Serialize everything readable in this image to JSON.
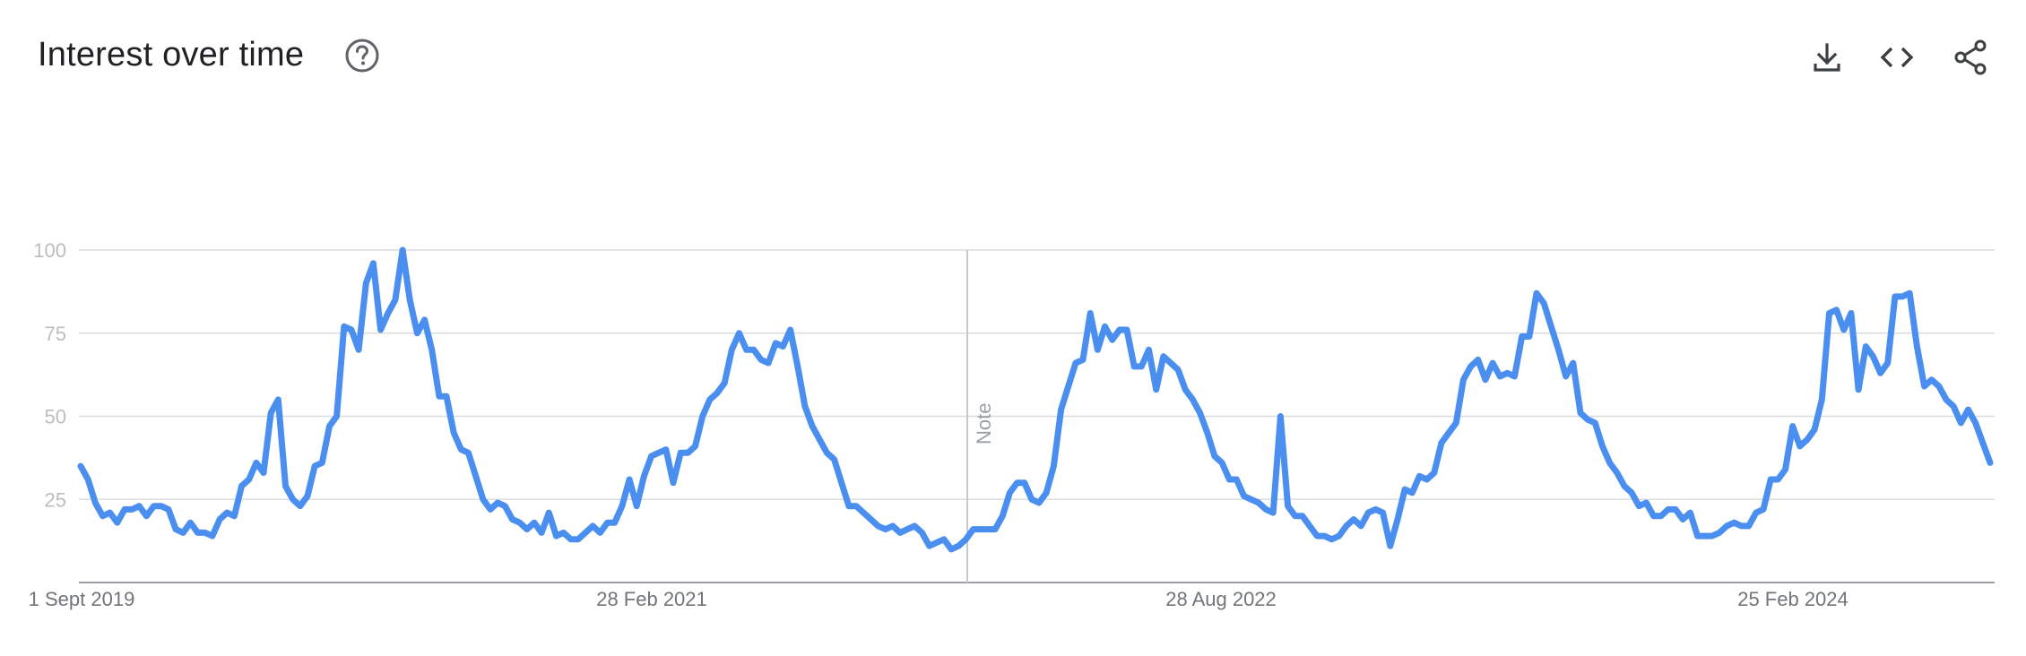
{
  "header": {
    "title": "Interest over time",
    "help_icon": "help-circle-icon",
    "actions": [
      {
        "name": "download-icon"
      },
      {
        "name": "embed-code-icon"
      },
      {
        "name": "share-icon"
      }
    ]
  },
  "colors": {
    "line": "#4a8ff0",
    "grid": "#dadce0",
    "axis": "#9aa0a6",
    "title": "#202124",
    "icon": "#3c4043"
  },
  "chart_data": {
    "type": "line",
    "title": "Interest over time",
    "xlabel": "",
    "ylabel": "",
    "ylim": [
      0,
      100
    ],
    "y_ticks": [
      25,
      50,
      75,
      100
    ],
    "x_tick_labels": [
      "1 Sept 2019",
      "28 Feb 2021",
      "28 Aug 2022",
      "25 Feb 2024"
    ],
    "annotations": [
      {
        "label": "Note",
        "x_index": 118
      }
    ],
    "grid": true,
    "legend": "none",
    "series": [
      {
        "values": [
          35,
          31,
          24,
          20,
          21,
          18,
          22,
          22,
          23,
          20,
          23,
          23,
          22,
          16,
          15,
          18,
          15,
          15,
          14,
          19,
          21,
          20,
          29,
          31,
          36,
          33,
          51,
          55,
          29,
          25,
          23,
          26,
          35,
          36,
          47,
          50,
          77,
          76,
          70,
          90,
          96,
          76,
          81,
          85,
          100,
          85,
          75,
          79,
          70,
          56,
          56,
          45,
          40,
          39,
          32,
          25,
          22,
          24,
          23,
          19,
          18,
          16,
          18,
          15,
          21,
          14,
          15,
          13,
          13,
          15,
          17,
          15,
          18,
          18,
          23,
          31,
          23,
          32,
          38,
          39,
          40,
          30,
          39,
          39,
          41,
          50,
          55,
          57,
          60,
          70,
          75,
          70,
          70,
          67,
          66,
          72,
          71,
          76,
          65,
          53,
          47,
          43,
          39,
          37,
          30,
          23,
          23,
          21,
          19,
          17,
          16,
          17,
          15,
          16,
          17,
          15,
          11,
          12,
          13,
          10,
          11,
          13,
          16,
          16,
          16,
          16,
          20,
          27,
          30,
          30,
          25,
          24,
          27,
          35,
          52,
          59,
          66,
          67,
          81,
          70,
          77,
          73,
          76,
          76,
          65,
          65,
          70,
          58,
          68,
          66,
          64,
          58,
          55,
          51,
          45,
          38,
          36,
          31,
          31,
          26,
          25,
          24,
          22,
          21,
          50,
          23,
          20,
          20,
          17,
          14,
          14,
          13,
          14,
          17,
          19,
          17,
          21,
          22,
          21,
          11,
          19,
          28,
          27,
          32,
          31,
          33,
          42,
          45,
          48,
          61,
          65,
          67,
          61,
          66,
          62,
          63,
          62,
          74,
          74,
          87,
          84,
          77,
          70,
          62,
          66,
          51,
          49,
          48,
          41,
          36,
          33,
          29,
          27,
          23,
          24,
          20,
          20,
          22,
          22,
          19,
          21,
          14,
          14,
          14,
          15,
          17,
          18,
          17,
          17,
          21,
          22,
          31,
          31,
          34,
          47,
          41,
          43,
          46,
          55,
          81,
          82,
          76,
          81,
          58,
          71,
          68,
          63,
          66,
          86,
          86,
          87,
          71,
          59,
          61,
          59,
          55,
          53,
          48,
          52,
          48,
          42,
          36
        ]
      }
    ]
  }
}
